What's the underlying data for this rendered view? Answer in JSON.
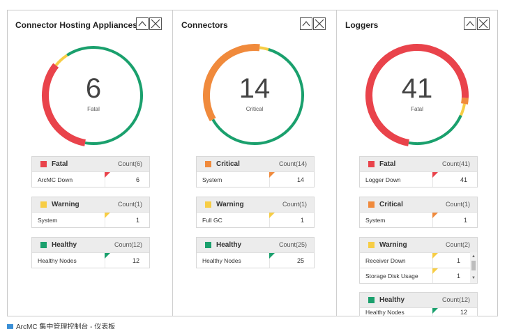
{
  "caption": "ArcMC 集中管理控制台 - 仪表板",
  "panels": [
    {
      "title": "Connector Hosting Appliances",
      "donut": {
        "value": "6",
        "severity": "Fatal",
        "segments": [
          {
            "status": "Fatal",
            "color": "#e9434b",
            "fraction": 0.33
          },
          {
            "status": "Warning",
            "color": "#f7cd45",
            "fraction": 0.05
          },
          {
            "status": "Healthy",
            "color": "#1aa06d",
            "fraction": 0.62
          }
        ]
      },
      "groups": [
        {
          "label": "Fatal",
          "color": "#e9434b",
          "count": "Count(6)",
          "rows": [
            {
              "name": "ArcMC Down",
              "count": "6"
            }
          ]
        },
        {
          "label": "Warning",
          "color": "#f7cd45",
          "count": "Count(1)",
          "rows": [
            {
              "name": "System",
              "count": "1"
            }
          ]
        },
        {
          "label": "Healthy",
          "color": "#1aa06d",
          "count": "Count(12)",
          "rows": [
            {
              "name": "Healthy Nodes",
              "count": "12"
            }
          ]
        }
      ]
    },
    {
      "title": "Connectors",
      "donut": {
        "value": "14",
        "severity": "Critical",
        "segments": [
          {
            "status": "Critical",
            "color": "#f08a3c",
            "fraction": 0.35
          },
          {
            "status": "Warning",
            "color": "#f7cd45",
            "fraction": 0.03
          },
          {
            "status": "Healthy",
            "color": "#1aa06d",
            "fraction": 0.62
          }
        ]
      },
      "groups": [
        {
          "label": "Critical",
          "color": "#f08a3c",
          "count": "Count(14)",
          "rows": [
            {
              "name": "System",
              "count": "14"
            }
          ]
        },
        {
          "label": "Warning",
          "color": "#f7cd45",
          "count": "Count(1)",
          "rows": [
            {
              "name": "Full GC",
              "count": "1"
            }
          ]
        },
        {
          "label": "Healthy",
          "color": "#1aa06d",
          "count": "Count(25)",
          "rows": [
            {
              "name": "Healthy Nodes",
              "count": "25"
            }
          ]
        }
      ]
    },
    {
      "title": "Loggers",
      "donut": {
        "value": "41",
        "severity": "Fatal",
        "segments": [
          {
            "status": "Fatal",
            "color": "#e9434b",
            "fraction": 0.73
          },
          {
            "status": "Critical",
            "color": "#f08a3c",
            "fraction": 0.02
          },
          {
            "status": "Warning",
            "color": "#f7cd45",
            "fraction": 0.04
          },
          {
            "status": "Healthy",
            "color": "#1aa06d",
            "fraction": 0.21
          }
        ]
      },
      "groups": [
        {
          "label": "Fatal",
          "color": "#e9434b",
          "count": "Count(41)",
          "rows": [
            {
              "name": "Logger Down",
              "count": "41"
            }
          ]
        },
        {
          "label": "Critical",
          "color": "#f08a3c",
          "count": "Count(1)",
          "rows": [
            {
              "name": "System",
              "count": "1"
            }
          ]
        },
        {
          "label": "Warning",
          "color": "#f7cd45",
          "count": "Count(2)",
          "rows": [
            {
              "name": "Receiver Down",
              "count": "1"
            },
            {
              "name": "Storage Disk Usage",
              "count": "1"
            }
          ]
        },
        {
          "label": "Healthy",
          "color": "#1aa06d",
          "count": "Count(12)",
          "rows": [
            {
              "name": "Healthy Nodes",
              "count": "12"
            }
          ]
        }
      ]
    }
  ]
}
